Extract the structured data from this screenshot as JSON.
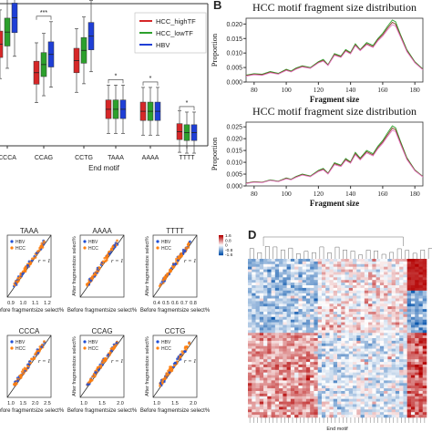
{
  "panel_letters": {
    "b": "B",
    "d": "D"
  },
  "chart_data": [
    {
      "id": "A",
      "type": "box",
      "xlabel": "End motif",
      "categories": [
        "CCCA",
        "CCAG",
        "CCTG",
        "TAAA",
        "AAAA",
        "TTTT"
      ],
      "legend": [
        "HCC_highTF",
        "HCC_lowTF",
        "HBV"
      ],
      "colors": [
        "#d62728",
        "#2ca02c",
        "#1f3fd6"
      ],
      "significance": [
        "***",
        "***",
        "***",
        "*",
        "*",
        "*"
      ],
      "medians": [
        [
          0.5,
          0.56,
          0.63
        ],
        [
          0.36,
          0.4,
          0.45
        ],
        [
          0.42,
          0.47,
          0.54
        ],
        [
          0.18,
          0.18,
          0.18
        ],
        [
          0.17,
          0.17,
          0.17
        ],
        [
          0.07,
          0.065,
          0.065
        ]
      ]
    },
    {
      "id": "B1",
      "type": "line",
      "title": "HCC motif fragment size distribution",
      "xlabel": "Fragment size",
      "ylabel": "Proportion",
      "xlim": [
        75,
        185
      ],
      "ylim": [
        0,
        0.022
      ],
      "xticks": [
        "80",
        "100",
        "120",
        "140",
        "160",
        "180"
      ],
      "yticks": [
        "0.000",
        "0.005",
        "0.010",
        "0.015",
        "0.020"
      ],
      "x": [
        75,
        80,
        85,
        90,
        95,
        100,
        103,
        106,
        110,
        115,
        120,
        123,
        126,
        130,
        134,
        137,
        140,
        143,
        146,
        150,
        154,
        157,
        160,
        163,
        166,
        168,
        171,
        175,
        180,
        185
      ],
      "series": [
        {
          "color": "#2ca02c",
          "values": [
            0.0024,
            0.0029,
            0.0027,
            0.0036,
            0.003,
            0.0044,
            0.0038,
            0.0048,
            0.0056,
            0.005,
            0.007,
            0.0078,
            0.006,
            0.0098,
            0.009,
            0.0112,
            0.0102,
            0.0132,
            0.0112,
            0.0136,
            0.0126,
            0.015,
            0.0168,
            0.0192,
            0.0214,
            0.0208,
            0.0165,
            0.0112,
            0.007,
            0.0045
          ]
        },
        {
          "color": "#8c3f2b",
          "values": [
            0.0022,
            0.0027,
            0.0025,
            0.0034,
            0.0028,
            0.0042,
            0.0036,
            0.0046,
            0.0054,
            0.0048,
            0.0068,
            0.0075,
            0.0058,
            0.0095,
            0.0087,
            0.0109,
            0.0099,
            0.0128,
            0.011,
            0.0132,
            0.0122,
            0.0146,
            0.0163,
            0.0186,
            0.0206,
            0.02,
            0.016,
            0.0108,
            0.0068,
            0.0043
          ]
        },
        {
          "color": "#e377c2",
          "values": [
            0.002,
            0.0025,
            0.0023,
            0.0032,
            0.0027,
            0.004,
            0.0035,
            0.0044,
            0.0052,
            0.0047,
            0.0066,
            0.0072,
            0.0057,
            0.0092,
            0.0085,
            0.0106,
            0.0097,
            0.0125,
            0.0108,
            0.0129,
            0.0119,
            0.0142,
            0.0158,
            0.018,
            0.0198,
            0.0193,
            0.0156,
            0.0105,
            0.0066,
            0.0042
          ]
        }
      ]
    },
    {
      "id": "B2",
      "type": "line",
      "title": "HCC motif fragment size distribution",
      "xlabel": "Fragment size",
      "ylabel": "Proportion",
      "xlim": [
        75,
        185
      ],
      "ylim": [
        0,
        0.027
      ],
      "xticks": [
        "80",
        "100",
        "120",
        "140",
        "160",
        "180"
      ],
      "yticks": [
        "0.000",
        "0.005",
        "0.010",
        "0.015",
        "0.020",
        "0.025"
      ],
      "x": [
        75,
        80,
        85,
        90,
        95,
        100,
        103,
        106,
        110,
        115,
        120,
        123,
        126,
        130,
        134,
        137,
        140,
        143,
        146,
        150,
        154,
        157,
        160,
        163,
        166,
        168,
        171,
        175,
        180,
        185
      ],
      "series": [
        {
          "color": "#2ca02c",
          "values": [
            0.0012,
            0.0018,
            0.0016,
            0.0026,
            0.002,
            0.0034,
            0.0028,
            0.004,
            0.005,
            0.0042,
            0.0066,
            0.0074,
            0.0054,
            0.0098,
            0.0088,
            0.0116,
            0.0102,
            0.0142,
            0.0118,
            0.015,
            0.0136,
            0.0168,
            0.0192,
            0.0224,
            0.0254,
            0.0246,
            0.019,
            0.012,
            0.0068,
            0.004
          ]
        },
        {
          "color": "#8c3f2b",
          "values": [
            0.0011,
            0.0017,
            0.0015,
            0.0024,
            0.0019,
            0.0032,
            0.0027,
            0.0038,
            0.0048,
            0.004,
            0.0063,
            0.0071,
            0.0052,
            0.0094,
            0.0085,
            0.0112,
            0.0099,
            0.0137,
            0.0114,
            0.0145,
            0.0131,
            0.0162,
            0.0186,
            0.0216,
            0.0245,
            0.0238,
            0.0184,
            0.0116,
            0.0066,
            0.0039
          ]
        },
        {
          "color": "#e377c2",
          "values": [
            0.001,
            0.0016,
            0.0014,
            0.0023,
            0.0018,
            0.003,
            0.0026,
            0.0036,
            0.0046,
            0.0039,
            0.0061,
            0.0068,
            0.005,
            0.009,
            0.0082,
            0.0108,
            0.0096,
            0.0132,
            0.011,
            0.014,
            0.0127,
            0.0157,
            0.018,
            0.0209,
            0.0236,
            0.023,
            0.0178,
            0.0112,
            0.0064,
            0.0038
          ]
        }
      ]
    },
    {
      "id": "C",
      "type": "scatter",
      "xlabel": "Before fragmentsize select%",
      "ylabel": "After fragmentsize select%",
      "legend": [
        "HBV",
        "HCC"
      ],
      "colors": [
        "#1f4fd6",
        "#ff7f0e"
      ],
      "panels": [
        {
          "title": "TAAA",
          "r": "r = 1",
          "ticks": [
            "0.9",
            "1.0",
            "1.1",
            "1.2"
          ]
        },
        {
          "title": "AAAA",
          "r": "r = 1",
          "ticks": []
        },
        {
          "title": "TTTT",
          "r": "r = 1",
          "ticks": [
            "0.4",
            "0.5",
            "0.6",
            "0.7",
            "0.8"
          ]
        },
        {
          "title": "CCCA",
          "r": "r = 1",
          "ticks": [
            "1.0",
            "1.5",
            "2.0",
            "2.5"
          ]
        },
        {
          "title": "CCAG",
          "r": "r = 1",
          "ticks": [
            "1.0",
            "1.5",
            "2.0"
          ]
        },
        {
          "title": "CCTG",
          "r": "r = 1",
          "ticks": [
            "1.0",
            "1.5",
            "2.0"
          ]
        }
      ]
    },
    {
      "id": "D",
      "type": "heatmap",
      "colorbar_ticks": [
        "1.6",
        "0.8",
        "0",
        "-0.8",
        "-1.6"
      ],
      "xlabel": "End motif"
    }
  ]
}
